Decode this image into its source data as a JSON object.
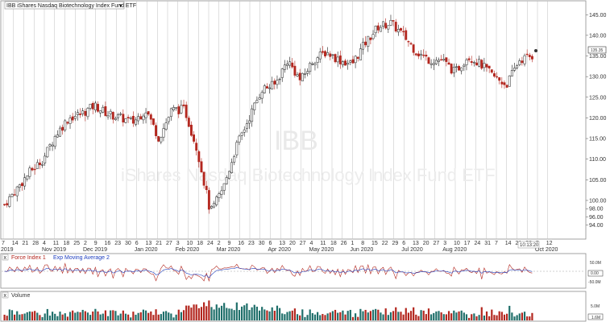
{
  "window": {
    "symbol_dropdown": "IBB iShares Nasdaq Biotechnology Index Fund ETF",
    "watermark_symbol": "IBB",
    "watermark_name": "iShares Nasdaq Biotechnology Index Fund ETF",
    "time_label": "10:13:20",
    "last_price_label": "135.35"
  },
  "colors": {
    "up": "#1f1f1f",
    "down": "#b3261e",
    "grid": "#bfbfbf",
    "panel_border": "#8c8c8c",
    "volume_up": "#1f6f6a",
    "volume_down": "#b3261e",
    "force_line": "#b3261e",
    "ema_line": "#1f3fbf"
  },
  "chart_data": [
    {
      "type": "candlestick",
      "yticks": [
        94,
        96,
        98,
        100,
        105,
        110,
        115,
        120,
        125,
        130,
        135,
        140,
        145
      ],
      "ylim": [
        92,
        147
      ],
      "x_day_ticks": [
        "7",
        "14",
        "21",
        "28",
        "4",
        "11",
        "18",
        "25",
        "2",
        "9",
        "16",
        "23",
        "30",
        "6",
        "13",
        "21",
        "27",
        "3",
        "10",
        "18",
        "24",
        "2",
        "9",
        "16",
        "23",
        "30",
        "6",
        "13",
        "20",
        "27",
        "4",
        "11",
        "18",
        "26",
        "1",
        "8",
        "15",
        "22",
        "29",
        "6",
        "13",
        "20",
        "27",
        "3",
        "10",
        "17",
        "24",
        "31",
        "7",
        "14",
        "21",
        "28",
        "5",
        "12"
      ],
      "x_month_labels": [
        "2019",
        "Nov 2019",
        "Dec 2019",
        "Jan 2020",
        "Feb 2020",
        "Mar 2020",
        "Apr 2020",
        "May 2020",
        "Jun 2020",
        "Jul 2020",
        "Aug 2020",
        "Oct 2020"
      ],
      "month_label_tick_index": [
        0,
        4,
        8,
        13,
        17,
        21,
        26,
        30,
        34,
        39,
        43,
        52
      ],
      "closes": [
        99,
        103,
        107,
        110,
        116,
        120,
        121,
        123,
        121,
        120,
        119,
        122,
        115,
        122,
        122,
        112,
        97,
        103,
        113,
        120,
        127,
        128,
        134,
        129,
        134,
        136,
        134,
        133,
        138,
        142,
        143,
        140,
        136,
        134,
        134,
        131,
        135,
        133,
        130,
        128,
        134,
        135
      ]
    },
    {
      "type": "line",
      "title_main": "Force Index 1",
      "title_sub": "Exp Moving Average 2",
      "yticks": [
        "50.0M",
        "-50.0M"
      ],
      "value_box": "0.00"
    },
    {
      "type": "bar",
      "title_main": "Volume",
      "yticks": [
        "5.0M"
      ],
      "value_box": "1.6M"
    }
  ]
}
